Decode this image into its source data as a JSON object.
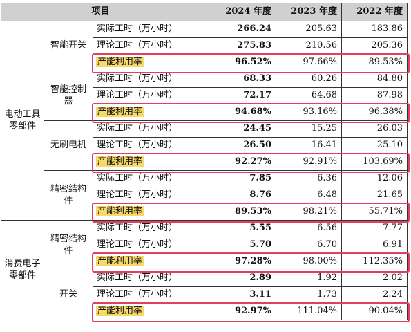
{
  "header": {
    "item": "项目",
    "year_2024": "2024 年度",
    "year_2023": "2023 年度",
    "year_2022": "2022 年度"
  },
  "metrics": {
    "actual": "实际工时（万小时）",
    "theoretical": "理论工时（万小时）",
    "utilization": "产能利用率"
  },
  "categories": [
    {
      "name": "电动工具零部件",
      "products": [
        {
          "name": "智能开关",
          "actual": [
            "266.24",
            "205.63",
            "183.86"
          ],
          "theoretical": [
            "275.83",
            "210.56",
            "205.36"
          ],
          "utilization": [
            "96.52%",
            "97.66%",
            "89.53%"
          ]
        },
        {
          "name": "智能控制器",
          "actual": [
            "68.33",
            "60.26",
            "84.80"
          ],
          "theoretical": [
            "72.17",
            "64.68",
            "87.98"
          ],
          "utilization": [
            "94.68%",
            "93.16%",
            "96.38%"
          ]
        },
        {
          "name": "无刷电机",
          "actual": [
            "24.45",
            "15.25",
            "26.03"
          ],
          "theoretical": [
            "26.50",
            "16.41",
            "25.10"
          ],
          "utilization": [
            "92.27%",
            "92.91%",
            "103.69%"
          ]
        },
        {
          "name": "精密结构件",
          "actual": [
            "7.85",
            "6.36",
            "12.06"
          ],
          "theoretical": [
            "8.76",
            "6.48",
            "21.65"
          ],
          "utilization": [
            "89.53%",
            "98.21%",
            "55.71%"
          ]
        }
      ]
    },
    {
      "name": "消费电子零部件",
      "products": [
        {
          "name": "精密结构件",
          "actual": [
            "5.55",
            "6.56",
            "7.77"
          ],
          "theoretical": [
            "5.70",
            "6.70",
            "6.91"
          ],
          "utilization": [
            "97.28%",
            "98.00%",
            "112.35%"
          ]
        },
        {
          "name": "开关",
          "actual": [
            "2.89",
            "1.92",
            "2.02"
          ],
          "theoretical": [
            "3.11",
            "1.73",
            "2.24"
          ],
          "utilization": [
            "92.97%",
            "111.04%",
            "90.04%"
          ]
        }
      ]
    }
  ],
  "colors": {
    "header_bg": "#d0d0d0",
    "highlight": "#f7d96b",
    "box_border": "#e0405e"
  }
}
